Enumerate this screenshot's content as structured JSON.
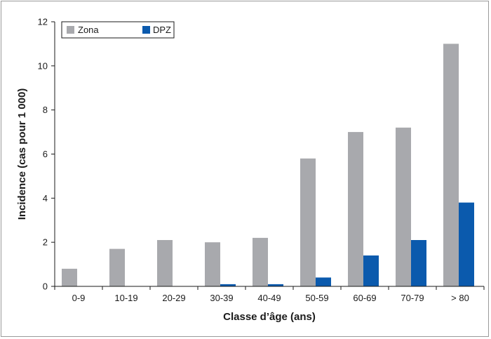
{
  "chart_data": {
    "type": "bar",
    "categories": [
      "0-9",
      "10-19",
      "20-29",
      "30-39",
      "40-49",
      "50-59",
      "60-69",
      "70-79",
      "> 80"
    ],
    "series": [
      {
        "name": "Zona",
        "color": "#a8a9ad",
        "values": [
          0.8,
          1.7,
          2.1,
          2.0,
          2.2,
          5.8,
          7.0,
          7.2,
          11.0
        ]
      },
      {
        "name": "DPZ",
        "color": "#0b5aad",
        "values": [
          0,
          0,
          0,
          0.1,
          0.1,
          0.4,
          1.4,
          2.1,
          3.8
        ]
      }
    ],
    "title": "",
    "xlabel": "Classe d’âge (ans)",
    "ylabel": "Incidence (cas pour 1 000)",
    "ylim": [
      0,
      12
    ],
    "yticks": [
      "0",
      "2",
      "4",
      "6",
      "8",
      "10",
      "12"
    ],
    "grid": false,
    "legend_position": "top-left"
  }
}
